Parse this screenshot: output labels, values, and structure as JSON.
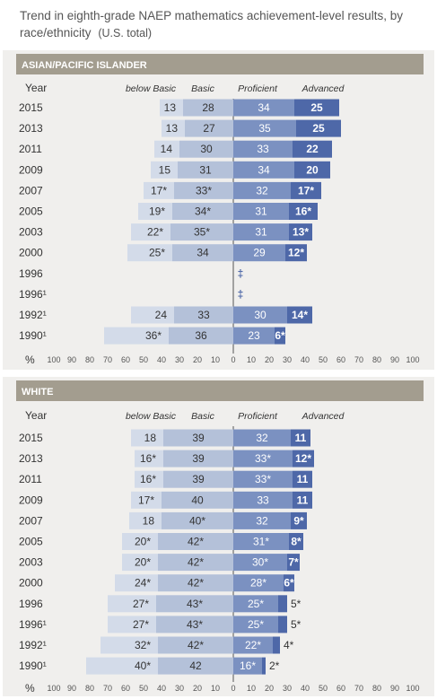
{
  "title": "Trend in eighth-grade NAEP mathematics achievement-level results, by race/ethnicity",
  "subtitle": "(U.S. total)",
  "column_headers": {
    "below_basic": "below Basic",
    "basic": "Basic",
    "proficient": "Proficient",
    "advanced": "Advanced"
  },
  "year_header": "Year",
  "axis_unit": "%",
  "axis_ticks": [
    "100",
    "90",
    "80",
    "70",
    "60",
    "50",
    "40",
    "30",
    "20",
    "10",
    "0",
    "10",
    "20",
    "30",
    "40",
    "50",
    "60",
    "70",
    "80",
    "90",
    "100"
  ],
  "colors": {
    "below_basic": "#d3dbe9",
    "basic": "#b4c1d9",
    "proficient": "#7b91c1",
    "advanced": "#4e68a8",
    "header_band": "#a39d8f",
    "panel_bg": "#f0efed"
  },
  "chart_data": [
    {
      "type": "bar",
      "title": "ASIAN/PACIFIC ISLANDER",
      "orientation": "horizontal-diverging",
      "xlim": [
        -100,
        100
      ],
      "rows": [
        {
          "year": "2015",
          "below_basic": 13,
          "basic": 28,
          "proficient": 34,
          "advanced": 25,
          "below_basic_label": "13",
          "basic_label": "28",
          "proficient_label": "34",
          "advanced_label": "25"
        },
        {
          "year": "2013",
          "below_basic": 13,
          "basic": 27,
          "proficient": 35,
          "advanced": 25,
          "below_basic_label": "13",
          "basic_label": "27",
          "proficient_label": "35",
          "advanced_label": "25"
        },
        {
          "year": "2011",
          "below_basic": 14,
          "basic": 30,
          "proficient": 33,
          "advanced": 22,
          "below_basic_label": "14",
          "basic_label": "30",
          "proficient_label": "33",
          "advanced_label": "22"
        },
        {
          "year": "2009",
          "below_basic": 15,
          "basic": 31,
          "proficient": 34,
          "advanced": 20,
          "below_basic_label": "15",
          "basic_label": "31",
          "proficient_label": "34",
          "advanced_label": "20"
        },
        {
          "year": "2007",
          "below_basic": 17,
          "basic": 33,
          "proficient": 32,
          "advanced": 17,
          "below_basic_label": "17*",
          "basic_label": "33*",
          "proficient_label": "32",
          "advanced_label": "17*"
        },
        {
          "year": "2005",
          "below_basic": 19,
          "basic": 34,
          "proficient": 31,
          "advanced": 16,
          "below_basic_label": "19*",
          "basic_label": "34*",
          "proficient_label": "31",
          "advanced_label": "16*"
        },
        {
          "year": "2003",
          "below_basic": 22,
          "basic": 35,
          "proficient": 31,
          "advanced": 13,
          "below_basic_label": "22*",
          "basic_label": "35*",
          "proficient_label": "31",
          "advanced_label": "13*"
        },
        {
          "year": "2000",
          "below_basic": 25,
          "basic": 34,
          "proficient": 29,
          "advanced": 12,
          "below_basic_label": "25*",
          "basic_label": "34",
          "proficient_label": "29",
          "advanced_label": "12*"
        },
        {
          "year": "1996",
          "na": "‡"
        },
        {
          "year": "1996¹",
          "na": "‡"
        },
        {
          "year": "1992¹",
          "below_basic": 24,
          "basic": 33,
          "proficient": 30,
          "advanced": 14,
          "below_basic_label": "24",
          "basic_label": "33",
          "proficient_label": "30",
          "advanced_label": "14*"
        },
        {
          "year": "1990¹",
          "below_basic": 36,
          "basic": 36,
          "proficient": 23,
          "advanced": 6,
          "below_basic_label": "36*",
          "basic_label": "36",
          "proficient_label": "23",
          "advanced_label": "6*"
        }
      ]
    },
    {
      "type": "bar",
      "title": "WHITE",
      "orientation": "horizontal-diverging",
      "xlim": [
        -100,
        100
      ],
      "rows": [
        {
          "year": "2015",
          "below_basic": 18,
          "basic": 39,
          "proficient": 32,
          "advanced": 11,
          "below_basic_label": "18",
          "basic_label": "39",
          "proficient_label": "32",
          "advanced_label": "11"
        },
        {
          "year": "2013",
          "below_basic": 16,
          "basic": 39,
          "proficient": 33,
          "advanced": 12,
          "below_basic_label": "16*",
          "basic_label": "39",
          "proficient_label": "33*",
          "advanced_label": "12*"
        },
        {
          "year": "2011",
          "below_basic": 16,
          "basic": 39,
          "proficient": 33,
          "advanced": 11,
          "below_basic_label": "16*",
          "basic_label": "39",
          "proficient_label": "33*",
          "advanced_label": "11"
        },
        {
          "year": "2009",
          "below_basic": 17,
          "basic": 40,
          "proficient": 33,
          "advanced": 11,
          "below_basic_label": "17*",
          "basic_label": "40",
          "proficient_label": "33",
          "advanced_label": "11"
        },
        {
          "year": "2007",
          "below_basic": 18,
          "basic": 40,
          "proficient": 32,
          "advanced": 9,
          "below_basic_label": "18",
          "basic_label": "40*",
          "proficient_label": "32",
          "advanced_label": "9*"
        },
        {
          "year": "2005",
          "below_basic": 20,
          "basic": 42,
          "proficient": 31,
          "advanced": 8,
          "below_basic_label": "20*",
          "basic_label": "42*",
          "proficient_label": "31*",
          "advanced_label": "8*"
        },
        {
          "year": "2003",
          "below_basic": 20,
          "basic": 42,
          "proficient": 30,
          "advanced": 7,
          "below_basic_label": "20*",
          "basic_label": "42*",
          "proficient_label": "30*",
          "advanced_label": "7*"
        },
        {
          "year": "2000",
          "below_basic": 24,
          "basic": 42,
          "proficient": 28,
          "advanced": 6,
          "below_basic_label": "24*",
          "basic_label": "42*",
          "proficient_label": "28*",
          "advanced_label": "6*"
        },
        {
          "year": "1996",
          "below_basic": 27,
          "basic": 43,
          "proficient": 25,
          "advanced": 5,
          "below_basic_label": "27*",
          "basic_label": "43*",
          "proficient_label": "25*",
          "advanced_label": "5*"
        },
        {
          "year": "1996¹",
          "below_basic": 27,
          "basic": 43,
          "proficient": 25,
          "advanced": 5,
          "below_basic_label": "27*",
          "basic_label": "43*",
          "proficient_label": "25*",
          "advanced_label": "5*"
        },
        {
          "year": "1992¹",
          "below_basic": 32,
          "basic": 42,
          "proficient": 22,
          "advanced": 4,
          "below_basic_label": "32*",
          "basic_label": "42*",
          "proficient_label": "22*",
          "advanced_label": "4*"
        },
        {
          "year": "1990¹",
          "below_basic": 40,
          "basic": 42,
          "proficient": 16,
          "advanced": 2,
          "below_basic_label": "40*",
          "basic_label": "42",
          "proficient_label": "16*",
          "advanced_label": "2*"
        }
      ]
    }
  ]
}
